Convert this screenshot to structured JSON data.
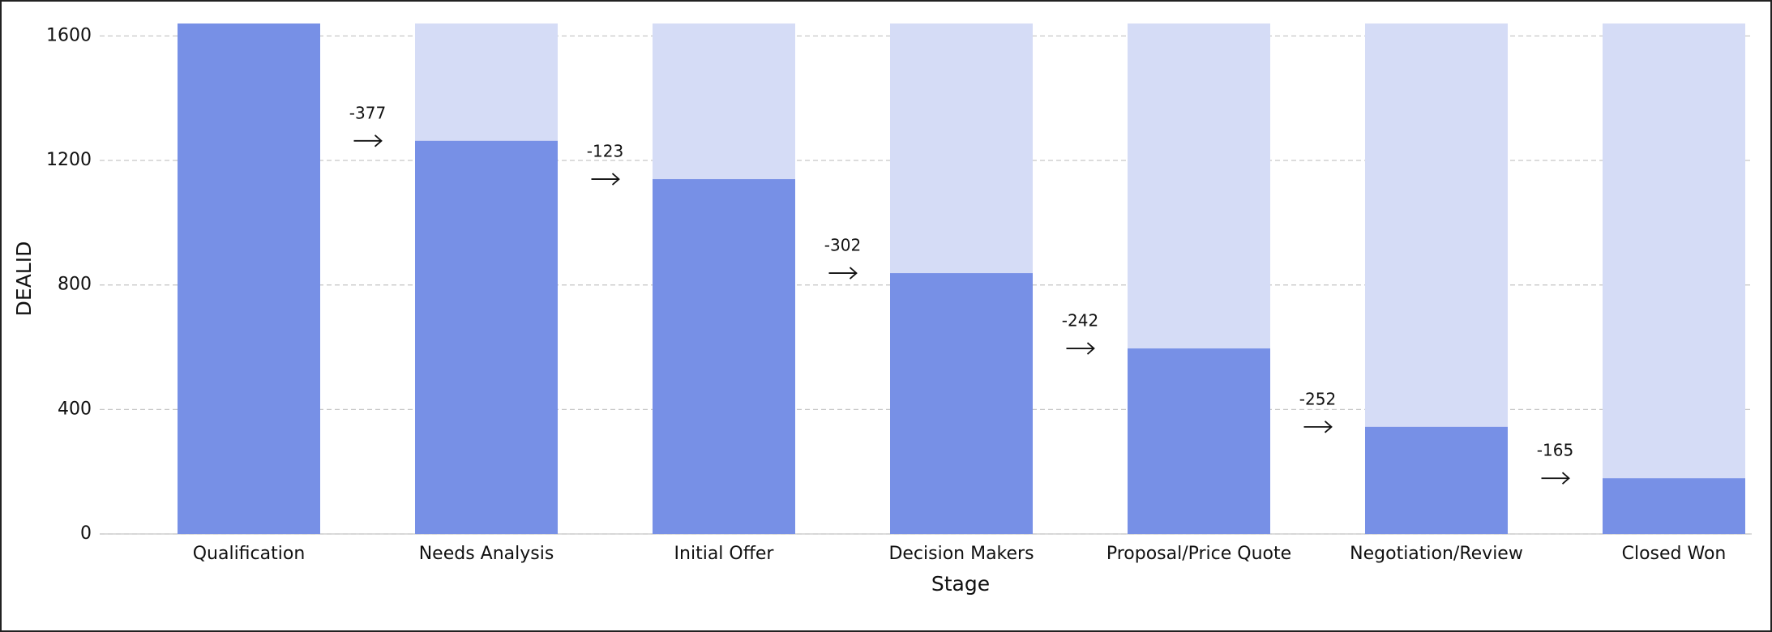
{
  "chart_data": {
    "type": "funnel",
    "x_label": "Stage",
    "y_label": "DEALID",
    "categories": [
      "Qualification",
      "Needs Analysis",
      "Initial Offer",
      "Decision Makers",
      "Proposal/Price Quote",
      "Negotiation/Review",
      "Closed Won"
    ],
    "values": [
      1640,
      1263,
      1140,
      838,
      596,
      344,
      179
    ],
    "drops": [
      -377,
      -123,
      -302,
      -242,
      -252,
      -165
    ],
    "color": "#7790e6",
    "background_color": "#d5dcf6",
    "ylim": [
      0,
      1640
    ],
    "yticks": [
      0,
      400,
      800,
      1200,
      1600
    ],
    "grid": true
  }
}
